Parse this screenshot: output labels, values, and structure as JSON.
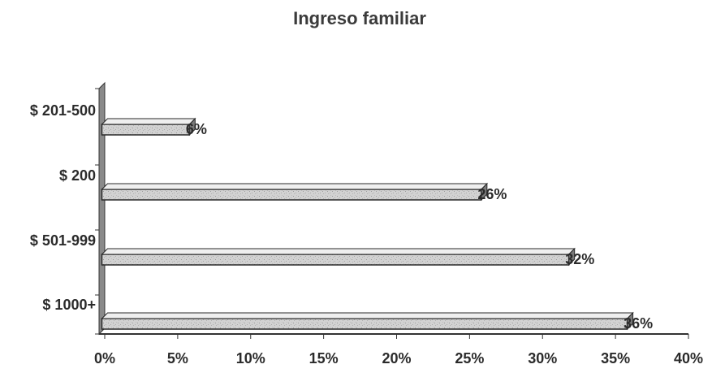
{
  "chart_data": {
    "type": "bar",
    "orientation": "horizontal",
    "title": "Ingreso familiar",
    "xlabel": "",
    "ylabel": "",
    "categories": [
      "$ 201-500",
      "$ 200",
      "$ 501-999",
      "$ 1000+"
    ],
    "values": [
      6,
      26,
      32,
      36
    ],
    "data_labels": [
      "6%",
      "26%",
      "32%",
      "36%"
    ],
    "xlim": [
      0,
      40
    ],
    "xticks": [
      0,
      5,
      10,
      15,
      20,
      25,
      30,
      35,
      40
    ],
    "xtick_labels": [
      "0%",
      "5%",
      "10%",
      "15%",
      "20%",
      "25%",
      "30%",
      "35%",
      "40%"
    ],
    "grid": false,
    "legend": "none",
    "colors": {
      "bar_fill": "#cfcfcf",
      "bar_edge": "#2a2a2a",
      "axis": "#333333",
      "text": "#2b2b2b"
    }
  }
}
